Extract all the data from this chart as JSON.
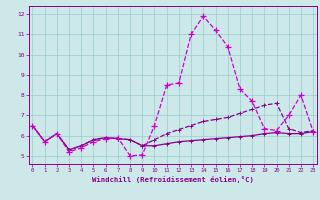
{
  "xlabel": "Windchill (Refroidissement éolien,°C)",
  "x": [
    0,
    1,
    2,
    3,
    4,
    5,
    6,
    7,
    8,
    9,
    10,
    11,
    12,
    13,
    14,
    15,
    16,
    17,
    18,
    19,
    20,
    21,
    22,
    23
  ],
  "series_main": [
    6.5,
    5.7,
    6.1,
    5.2,
    5.4,
    5.7,
    5.85,
    5.9,
    5.0,
    5.05,
    6.5,
    8.5,
    8.6,
    11.0,
    11.9,
    11.2,
    10.4,
    8.3,
    7.7,
    6.35,
    6.25,
    7.0,
    8.0,
    6.2
  ],
  "series_upper": [
    6.5,
    5.7,
    6.1,
    5.3,
    5.5,
    5.8,
    5.9,
    5.85,
    5.8,
    5.5,
    5.8,
    6.1,
    6.3,
    6.5,
    6.7,
    6.8,
    6.9,
    7.1,
    7.3,
    7.5,
    7.6,
    6.35,
    6.15,
    6.25
  ],
  "series_lower": [
    6.5,
    5.7,
    6.1,
    5.3,
    5.5,
    5.8,
    5.9,
    5.85,
    5.8,
    5.5,
    5.5,
    5.6,
    5.7,
    5.75,
    5.8,
    5.85,
    5.9,
    5.95,
    6.0,
    6.1,
    6.15,
    6.1,
    6.1,
    6.2
  ],
  "line_color_dark": "#880088",
  "line_color_bright": "#cc00cc",
  "bg_color": "#cce8e8",
  "grid_color": "#99cccc",
  "ylim": [
    4.6,
    12.4
  ],
  "xlim": [
    0,
    23
  ]
}
